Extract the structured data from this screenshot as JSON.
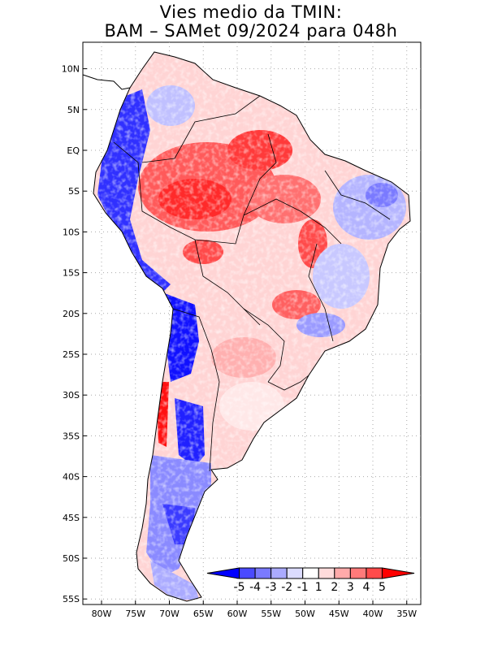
{
  "title": {
    "line1": "Vies medio da TMIN:",
    "line2": "BAM – SAMet 09/2024  para 048h"
  },
  "map": {
    "region": "South America",
    "variable": "TMIN bias",
    "lat_labels": [
      "10N",
      "5N",
      "EQ",
      "5S",
      "10S",
      "15S",
      "20S",
      "25S",
      "30S",
      "35S",
      "40S",
      "45S",
      "50S",
      "55S"
    ],
    "lon_labels": [
      "80W",
      "75W",
      "70W",
      "65W",
      "60W",
      "55W",
      "50W",
      "45W",
      "40W",
      "35W"
    ],
    "extent": {
      "lat_min": -56,
      "lat_max": 13,
      "lon_min": -85,
      "lon_max": -34
    }
  },
  "colorbar": {
    "labels": [
      "-5",
      "-4",
      "-3",
      "-2",
      "-1",
      "1",
      "2",
      "3",
      "4",
      "5"
    ],
    "colors": [
      "#0000ff",
      "#4a4aff",
      "#7a7aff",
      "#aaaaff",
      "#dcdcff",
      "#ffffff",
      "#ffdcdc",
      "#ffaaaa",
      "#ff7a7a",
      "#ff4a4a",
      "#ff0000"
    ]
  },
  "palette": {
    "strong_cold": "#1a1aff",
    "cold": "#7a7aff",
    "light_cold": "#c8c8ff",
    "neutral": "#ffffff",
    "light_warm": "#ffd0d0",
    "warm": "#ff8a8a",
    "strong_warm": "#ff2a2a",
    "border": "#000000",
    "grid": "#aaaaaa"
  }
}
